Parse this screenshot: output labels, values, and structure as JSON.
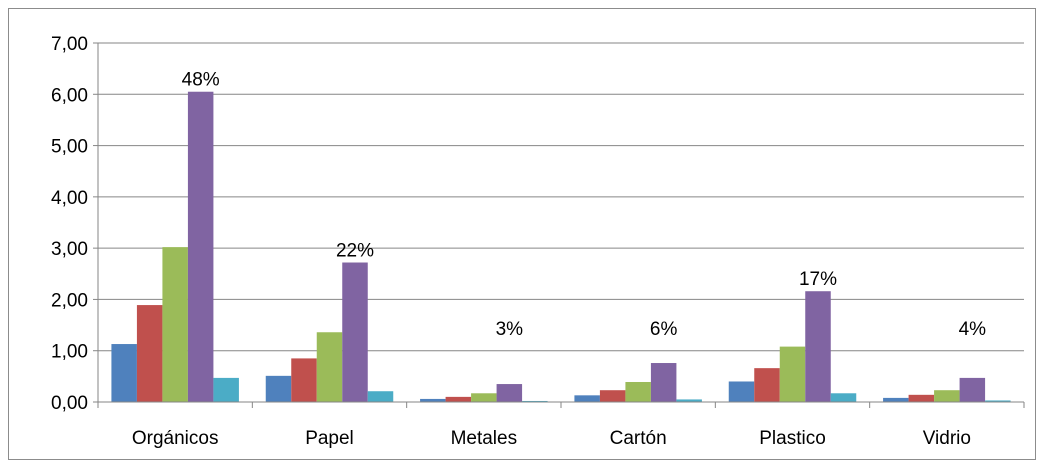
{
  "chart_data": {
    "type": "bar",
    "categories": [
      "Orgánicos",
      "Papel",
      "Metales",
      "Cartón",
      "Plastico",
      "Vidrio"
    ],
    "series": [
      {
        "values": [
          1.13,
          0.51,
          0.06,
          0.13,
          0.4,
          0.08
        ],
        "color": "#4f81bd"
      },
      {
        "values": [
          1.89,
          0.85,
          0.1,
          0.23,
          0.66,
          0.14
        ],
        "color": "#c0504d"
      },
      {
        "values": [
          3.02,
          1.36,
          0.17,
          0.39,
          1.08,
          0.23
        ],
        "color": "#9bbb59"
      },
      {
        "values": [
          6.05,
          2.72,
          0.35,
          0.76,
          2.16,
          0.47
        ],
        "color": "#8064a2"
      },
      {
        "values": [
          0.47,
          0.21,
          0.02,
          0.05,
          0.17,
          0.03
        ],
        "color": "#4bacc6"
      }
    ],
    "data_labels": [
      "48%",
      "22%",
      "3%",
      "6%",
      "17%",
      "4%"
    ],
    "y_ticks": [
      "0,00",
      "1,00",
      "2,00",
      "3,00",
      "4,00",
      "5,00",
      "6,00",
      "7,00"
    ],
    "ylim": [
      0,
      7
    ],
    "grid": true,
    "legend": "none"
  }
}
